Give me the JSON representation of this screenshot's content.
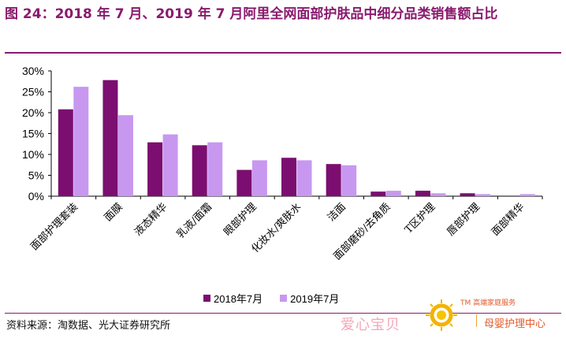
{
  "page": {
    "title": "图 24：2018 年 7 月、2019 年 7 月阿里全网面部护肤品中细分品类销售额占比",
    "source": "资料来源：淘数据、光大证券研究所",
    "watermark": {
      "brand": "爱心宝贝",
      "tm_text": "TM 高端家庭服务",
      "sub": "母婴护理中心"
    }
  },
  "colors": {
    "series_2018": "#7b0e70",
    "series_2019": "#c898f0",
    "title": "#8a1a6e"
  },
  "chart_data": {
    "type": "bar",
    "categories": [
      "面部护理套装",
      "面膜",
      "液态精华",
      "乳液/面霜",
      "眼部护理",
      "化妆水/爽肤水",
      "洁面",
      "面部磨砂/去角质",
      "T区护理",
      "唇部护理",
      "面部精华"
    ],
    "series": [
      {
        "name": "2018年7月",
        "values": [
          20.8,
          27.8,
          12.9,
          12.2,
          6.3,
          9.2,
          7.7,
          1.1,
          1.3,
          0.7,
          0.0
        ]
      },
      {
        "name": "2019年7月",
        "values": [
          26.2,
          19.4,
          14.8,
          12.9,
          8.6,
          8.6,
          7.4,
          1.3,
          0.7,
          0.5,
          0.5
        ]
      }
    ],
    "ylim": [
      0,
      30
    ],
    "yticks": [
      "0%",
      "5%",
      "10%",
      "15%",
      "20%",
      "25%",
      "30%"
    ],
    "ytick_values": [
      0,
      5,
      10,
      15,
      20,
      25,
      30
    ],
    "grid": false,
    "legend_position": "bottom-center"
  }
}
